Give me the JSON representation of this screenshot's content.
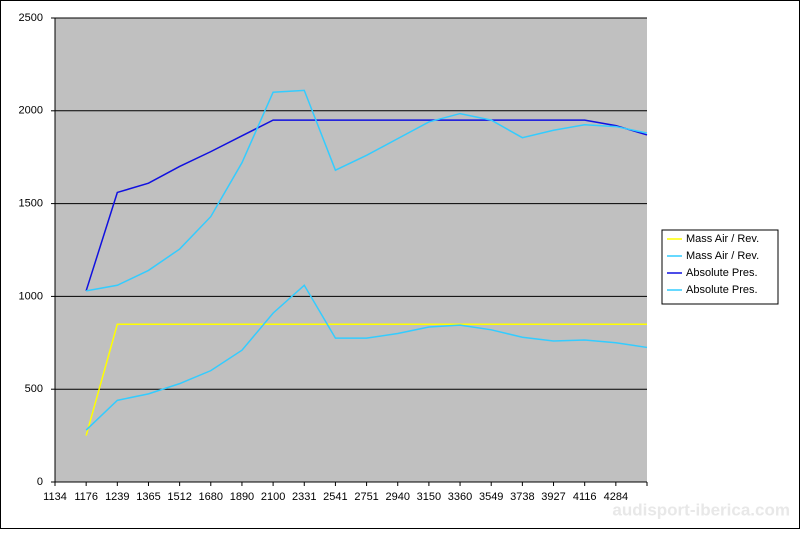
{
  "chart_data": {
    "type": "line",
    "categories": [
      "1134",
      "1176",
      "1239",
      "1365",
      "1512",
      "1680",
      "1890",
      "2100",
      "2331",
      "2541",
      "2751",
      "2940",
      "3150",
      "3360",
      "3549",
      "3738",
      "3927",
      "4116",
      "4284",
      null
    ],
    "series": [
      {
        "name": "Mass Air / Rev.",
        "color": "#ffff00",
        "values": [
          null,
          250,
          850,
          850,
          850,
          850,
          850,
          850,
          850,
          850,
          850,
          850,
          850,
          850,
          850,
          850,
          850,
          850,
          850,
          850
        ]
      },
      {
        "name": "Mass Air / Rev.",
        "color": "#33ccff",
        "values": [
          null,
          280,
          440,
          475,
          530,
          600,
          710,
          910,
          1060,
          775,
          775,
          800,
          835,
          845,
          820,
          780,
          760,
          765,
          750,
          725
        ]
      },
      {
        "name": "Absolute Pres.",
        "color": "#1010e0",
        "values": [
          null,
          1030,
          1560,
          1610,
          1700,
          1780,
          1865,
          1950,
          1950,
          1950,
          1950,
          1950,
          1950,
          1950,
          1950,
          1950,
          1950,
          1950,
          1920,
          1870
        ]
      },
      {
        "name": "Absolute Pres.",
        "color": "#33ccff",
        "values": [
          null,
          1030,
          1060,
          1140,
          1255,
          1430,
          1720,
          2100,
          2110,
          1680,
          1760,
          1850,
          1940,
          1985,
          1950,
          1855,
          1895,
          1925,
          1915,
          1880
        ]
      }
    ],
    "ylim": [
      0,
      2500
    ],
    "yticks": [
      0,
      500,
      1000,
      1500,
      2000,
      2500
    ],
    "grid": true,
    "legend": "right",
    "watermark": "audisport-iberica.com"
  }
}
